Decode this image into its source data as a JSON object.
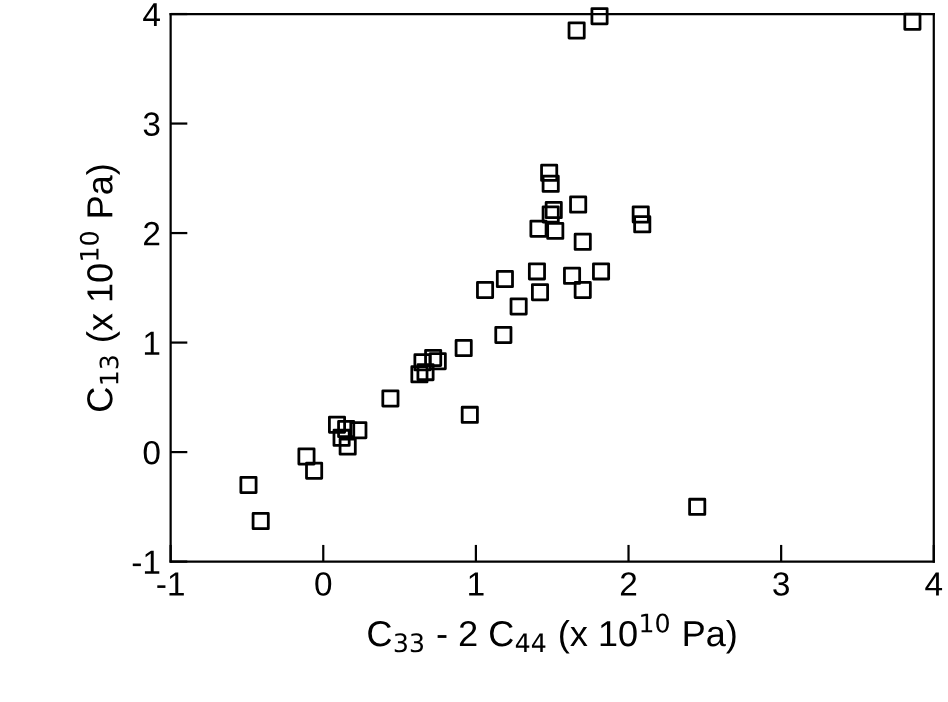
{
  "chart_data": {
    "type": "scatter",
    "xlabel": "C$_{33}$ - 2 C$_{44}$ (x 10$^{10}$ Pa)",
    "ylabel": "C$_{13}$ (x 10$^{10}$ Pa)",
    "xlim": [
      -1,
      4
    ],
    "ylim": [
      -1,
      4
    ],
    "xticks": [
      -1,
      0,
      1,
      2,
      3,
      4
    ],
    "yticks": [
      -1,
      0,
      1,
      2,
      3,
      4
    ],
    "marker": "square",
    "grid": false,
    "legend": false,
    "series": [
      {
        "color": "#000000",
        "x": [
          -0.49,
          -0.41,
          -0.11,
          -0.06,
          0.09,
          0.12,
          0.15,
          0.16,
          0.23,
          0.44,
          0.63,
          0.65,
          0.67,
          0.72,
          0.75,
          0.92,
          0.96,
          1.06,
          1.18,
          1.19,
          1.28,
          1.4,
          1.42,
          1.41,
          1.48,
          1.49,
          1.49,
          1.51,
          1.52,
          1.63,
          1.66,
          1.67,
          1.7,
          1.7,
          1.81,
          1.82,
          2.08,
          2.09,
          2.45,
          3.86
        ],
        "values": [
          -0.3,
          -0.63,
          -0.04,
          -0.17,
          0.25,
          0.13,
          0.21,
          0.05,
          0.2,
          0.49,
          0.71,
          0.82,
          0.73,
          0.86,
          0.83,
          0.95,
          0.34,
          1.48,
          1.07,
          1.58,
          1.33,
          1.65,
          1.46,
          2.04,
          2.55,
          2.45,
          2.17,
          2.21,
          2.02,
          1.61,
          3.85,
          2.26,
          1.92,
          1.48,
          3.98,
          1.65,
          2.17,
          2.08,
          -0.5,
          3.93
        ]
      }
    ]
  }
}
